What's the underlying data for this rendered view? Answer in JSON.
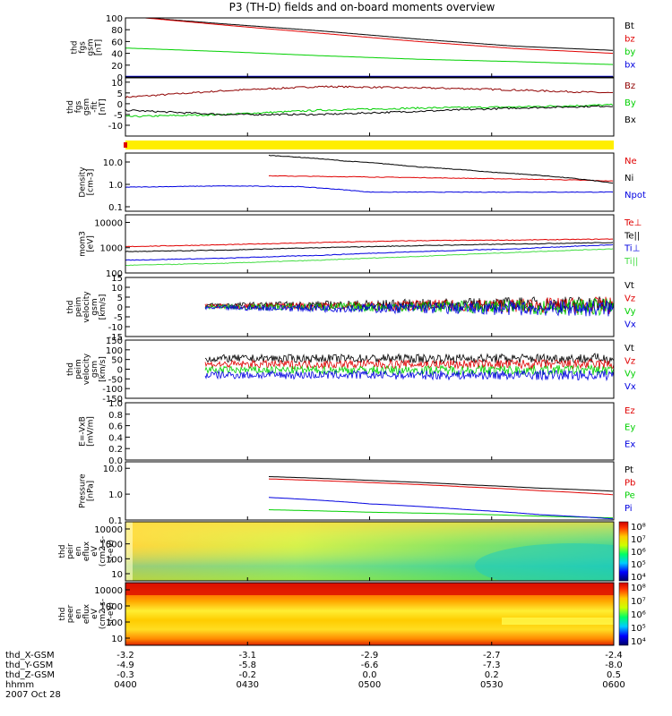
{
  "title": "P3 (TH-D) fields and on-board moments overview",
  "colors": {
    "black": "#000000",
    "red": "#e00000",
    "green": "#00d000",
    "blue": "#0000e0",
    "darkred": "#900000",
    "yellow": "#ffee00",
    "lightgreen": "#44dd44"
  },
  "chart_data": [
    {
      "type": "line",
      "id": "p1",
      "ylabel": [
        "thd",
        "fgs",
        "gsm",
        "[nT]"
      ],
      "yticks": [
        "100",
        "80",
        "60",
        "40",
        "20",
        "0"
      ],
      "ylim": [
        0,
        100
      ],
      "series": [
        {
          "name": "Bt",
          "color": "#000000",
          "x": [
            0,
            0.2,
            0.4,
            0.6,
            0.8,
            1
          ],
          "y": [
            103,
            90,
            78,
            64,
            52,
            45
          ]
        },
        {
          "name": "bz",
          "color": "#e00000",
          "x": [
            0,
            0.2,
            0.4,
            0.6,
            0.8,
            1
          ],
          "y": [
            103,
            88,
            74,
            60,
            48,
            40
          ]
        },
        {
          "name": "by",
          "color": "#00d000",
          "x": [
            0,
            0.2,
            0.4,
            0.6,
            0.8,
            1
          ],
          "y": [
            49,
            43,
            36,
            30,
            26,
            21
          ]
        },
        {
          "name": "bx",
          "color": "#0000e0",
          "x": [
            0,
            0.5,
            1
          ],
          "y": [
            1,
            1,
            1
          ]
        }
      ]
    },
    {
      "type": "line",
      "id": "p2",
      "ylabel": [
        "thd",
        "fgs",
        "gsm",
        "-fit",
        "[nT]"
      ],
      "yticks": [
        "10",
        "5",
        "0",
        "-5",
        "-10"
      ],
      "ylim": [
        -15,
        12
      ],
      "series": [
        {
          "name": "Bz",
          "color": "#900000",
          "x": [
            0,
            0.2,
            0.4,
            0.55,
            0.7,
            0.85,
            1
          ],
          "y": [
            3,
            6,
            8,
            7.5,
            7,
            6,
            5
          ]
        },
        {
          "name": "By",
          "color": "#00d000",
          "x": [
            0,
            0.2,
            0.4,
            0.6,
            0.8,
            1
          ],
          "y": [
            -6,
            -5,
            -3,
            -2,
            -1.5,
            -0.5
          ]
        },
        {
          "name": "Bx",
          "color": "#000000",
          "x": [
            0,
            0.2,
            0.4,
            0.6,
            0.8,
            1
          ],
          "y": [
            -3,
            -5,
            -5,
            -3.5,
            -2,
            -1
          ]
        }
      ]
    },
    {
      "type": "log-line",
      "id": "p3",
      "ylabel": [
        "Density",
        "[cm-3]"
      ],
      "yticks": [
        "10.0",
        "1.0",
        "0.1"
      ],
      "ylog": [
        -1.2,
        1.4
      ],
      "series": [
        {
          "name": "Ne",
          "color": "#e00000",
          "x": [
            0.29,
            0.45,
            0.6,
            0.75,
            0.9,
            1
          ],
          "y": [
            2.4,
            2.2,
            2.0,
            1.8,
            1.6,
            1.4
          ]
        },
        {
          "name": "Ni",
          "color": "#000000",
          "x": [
            0.29,
            0.45,
            0.6,
            0.75,
            0.9,
            1
          ],
          "y": [
            20,
            11,
            6,
            3.5,
            2,
            1.1
          ]
        },
        {
          "name": "Npot",
          "color": "#0000e0",
          "x": [
            0,
            0.2,
            0.35,
            0.5,
            0.7,
            1
          ],
          "y": [
            0.75,
            0.85,
            0.8,
            0.45,
            0.45,
            0.45
          ]
        }
      ]
    },
    {
      "type": "log-line",
      "id": "p4",
      "ylabel": [
        "mom3",
        "[eV]"
      ],
      "yticks": [
        "10000",
        "1000",
        "100"
      ],
      "ylog": [
        2,
        4.3
      ],
      "series": [
        {
          "name": "Te⊥",
          "color": "#e00000",
          "x": [
            0,
            0.2,
            0.4,
            0.6,
            0.8,
            1
          ],
          "y": [
            1100,
            1300,
            1600,
            1900,
            2000,
            2200
          ]
        },
        {
          "name": "Te||",
          "color": "#000000",
          "x": [
            0,
            0.2,
            0.4,
            0.6,
            0.8,
            1
          ],
          "y": [
            700,
            800,
            1000,
            1200,
            1400,
            1600
          ]
        },
        {
          "name": "Ti⊥",
          "color": "#0000e0",
          "x": [
            0,
            0.2,
            0.4,
            0.6,
            0.8,
            1
          ],
          "y": [
            320,
            380,
            500,
            700,
            900,
            1300
          ]
        },
        {
          "name": "Ti||",
          "color": "#44dd44",
          "x": [
            0,
            0.2,
            0.4,
            0.6,
            0.8,
            1
          ],
          "y": [
            200,
            240,
            320,
            450,
            650,
            900
          ]
        }
      ]
    },
    {
      "type": "line",
      "id": "p5",
      "ylabel": [
        "thd",
        "peim",
        "velocity",
        "gsm",
        "[km/s]"
      ],
      "yticks": [
        "15",
        "10",
        "5",
        "0",
        "-5",
        "-10",
        "-15"
      ],
      "ylim": [
        -15,
        15
      ],
      "series": [
        {
          "name": "Vt",
          "color": "#000000"
        },
        {
          "name": "Vz",
          "color": "#e00000"
        },
        {
          "name": "Vy",
          "color": "#00d000"
        },
        {
          "name": "Vx",
          "color": "#0000e0"
        }
      ]
    },
    {
      "type": "line",
      "id": "p6",
      "ylabel": [
        "thd",
        "peim",
        "velocity",
        "gsm",
        "[km/s]"
      ],
      "yticks": [
        "150",
        "100",
        "50",
        "0",
        "-50",
        "-100",
        "-150"
      ],
      "ylim": [
        -150,
        150
      ],
      "series": [
        {
          "name": "Vt",
          "color": "#000000"
        },
        {
          "name": "Vz",
          "color": "#e00000"
        },
        {
          "name": "Vy",
          "color": "#00d000"
        },
        {
          "name": "Vx",
          "color": "#0000e0"
        }
      ]
    },
    {
      "type": "line",
      "id": "p7",
      "ylabel": [
        "E=-VxB",
        "[mV/m]"
      ],
      "yticks": [
        "1.0",
        "0.8",
        "0.6",
        "0.4",
        "0.2",
        "0.0"
      ],
      "ylim": [
        0,
        1
      ],
      "series": [
        {
          "name": "Ez",
          "color": "#e00000"
        },
        {
          "name": "Ey",
          "color": "#00d000"
        },
        {
          "name": "Ex",
          "color": "#0000e0"
        }
      ]
    },
    {
      "type": "log-line",
      "id": "p8",
      "ylabel": [
        "Pressure",
        "[nPa]"
      ],
      "yticks": [
        "10.0",
        "1.0",
        "0.1"
      ],
      "ylog": [
        -1,
        1.25
      ],
      "series": [
        {
          "name": "Pt",
          "color": "#000000",
          "x": [
            0.29,
            0.5,
            0.7,
            0.85,
            1
          ],
          "y": [
            4.8,
            3.4,
            2.3,
            1.7,
            1.3
          ]
        },
        {
          "name": "Pb",
          "color": "#e00000",
          "x": [
            0.29,
            0.5,
            0.7,
            0.85,
            1
          ],
          "y": [
            3.9,
            2.8,
            1.9,
            1.35,
            0.95
          ]
        },
        {
          "name": "Pe",
          "color": "#00d000",
          "x": [
            0.29,
            0.5,
            0.7,
            0.85,
            1
          ],
          "y": [
            0.25,
            0.2,
            0.17,
            0.14,
            0.12
          ]
        },
        {
          "name": "Pi",
          "color": "#0000e0",
          "x": [
            0.29,
            0.5,
            0.7,
            0.85,
            1
          ],
          "y": [
            0.75,
            0.42,
            0.25,
            0.16,
            0.11
          ]
        }
      ]
    },
    {
      "type": "heatmap",
      "id": "p9",
      "ylabel": [
        "thd",
        "peir",
        "en",
        "eflux",
        "eV",
        "(cm2-s-",
        "sr-eV)"
      ],
      "yticks": [
        "10000",
        "1000",
        "100",
        "10"
      ],
      "cbticks": [
        "10⁸",
        "10⁷",
        "10⁶",
        "10⁵",
        "10⁴"
      ]
    },
    {
      "type": "heatmap",
      "id": "p10",
      "ylabel": [
        "thd",
        "peer",
        "en",
        "eflux",
        "eV",
        "(cm2-s-",
        "sr-eV)"
      ],
      "yticks": [
        "10000",
        "1000",
        "100",
        "10"
      ],
      "cbticks": [
        "10⁸",
        "10⁷",
        "10⁶",
        "10⁵",
        "10⁴"
      ]
    }
  ],
  "xaxis": {
    "rows": [
      {
        "label": "thd_X-GSM",
        "values": [
          "-3.2",
          "-3.1",
          "-2.9",
          "-2.7",
          "-2.4"
        ]
      },
      {
        "label": "thd_Y-GSM",
        "values": [
          "-4.9",
          "-5.8",
          "-6.6",
          "-7.3",
          "-8.0"
        ]
      },
      {
        "label": "thd_Z-GSM",
        "values": [
          "-0.3",
          "-0.2",
          "0.0",
          "0.2",
          "0.5"
        ]
      },
      {
        "label": "hhmm",
        "values": [
          "0400",
          "0430",
          "0500",
          "0530",
          "0600"
        ]
      }
    ],
    "date": "2007 Oct 28"
  }
}
